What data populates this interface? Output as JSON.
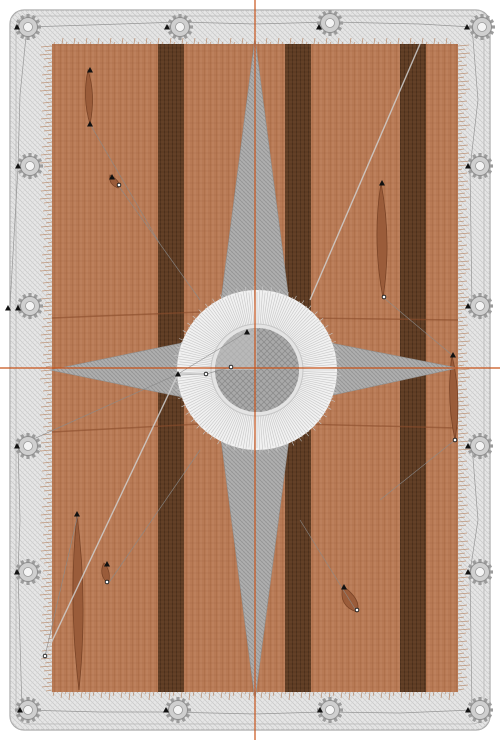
{
  "canvas": {
    "background": "#ffffff"
  },
  "colors": {
    "frame_fill": "#e6e6e6",
    "frame_stitch": "#b5b5b5",
    "fabric": "#b87a55",
    "fabric_stitch": "#9a5a36",
    "stripe_dark": "#5e3c23",
    "star_fill": "#b0b0b0",
    "star_stitch": "#8f8f8f",
    "ring_fill": "#f1f1f1",
    "ring_stitch": "#c6c6c6",
    "hub_fill": "#a9a9a9",
    "travel_line": "#8a8a8a",
    "crosshair": "#c8531a",
    "marker": "#111111"
  },
  "icons": {
    "hoop_clamp": "gear-icon",
    "stitch_point": "triangle-marker-icon"
  },
  "design": {
    "stripe_count": 3,
    "star_points": 4
  }
}
